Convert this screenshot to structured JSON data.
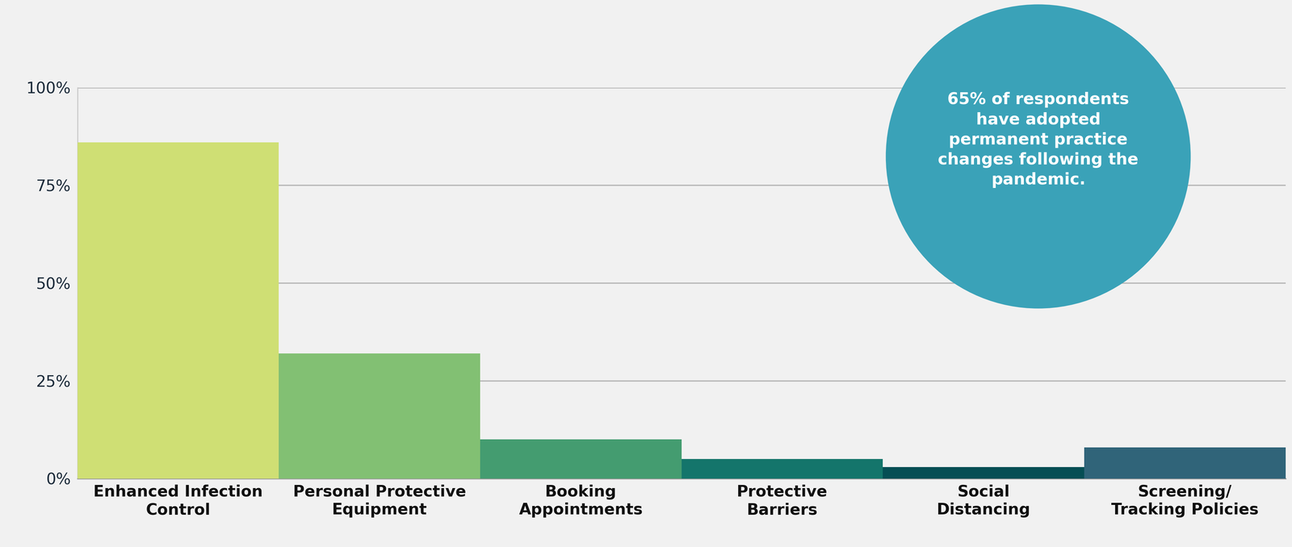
{
  "chart_data": {
    "type": "bar",
    "categories": [
      "Enhanced Infection Control",
      "Personal Protective Equipment",
      "Booking Appointments",
      "Protective Barriers",
      "Social Distancing",
      "Screening/ Tracking Policies"
    ],
    "values": [
      86,
      32,
      10,
      5,
      3,
      8
    ],
    "colors": [
      "#cfdf74",
      "#82c073",
      "#449c70",
      "#14756b",
      "#064e54",
      "#306479"
    ],
    "ylim": [
      0,
      100
    ],
    "yticks": [
      {
        "value": 0,
        "label": "0%"
      },
      {
        "value": 25,
        "label": "25%"
      },
      {
        "value": 50,
        "label": "50%"
      },
      {
        "value": 75,
        "label": "75%"
      },
      {
        "value": 100,
        "label": "100%"
      }
    ],
    "grid": true,
    "annotation": "65% of respondents have adopted permanent practice changes following the pandemic."
  }
}
